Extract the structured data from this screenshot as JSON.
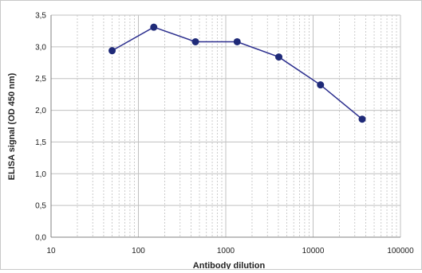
{
  "chart_data": {
    "type": "line",
    "xscale": "log",
    "xlabel": "Antibody dilution",
    "ylabel": "ELISA signal (OD 450 nm)",
    "xlim": [
      10,
      100000
    ],
    "ylim": [
      0,
      3.5
    ],
    "grid": true,
    "x_tick_labels": [
      "10",
      "100",
      "1000",
      "10000",
      "100000"
    ],
    "y_tick_labels": [
      "0,0",
      "0,5",
      "1,0",
      "1,5",
      "2,0",
      "2,5",
      "3,0",
      "3,5"
    ],
    "series": [
      {
        "x": [
          50,
          150,
          450,
          1350,
          4050,
          12150,
          36450
        ],
        "y": [
          2.94,
          3.31,
          3.08,
          3.08,
          2.84,
          2.4,
          1.86
        ]
      }
    ],
    "colors": {
      "line": "#2b2e8e",
      "marker": "#1f2a78",
      "grid": "#c0c0c0",
      "axis": "#808080"
    }
  }
}
